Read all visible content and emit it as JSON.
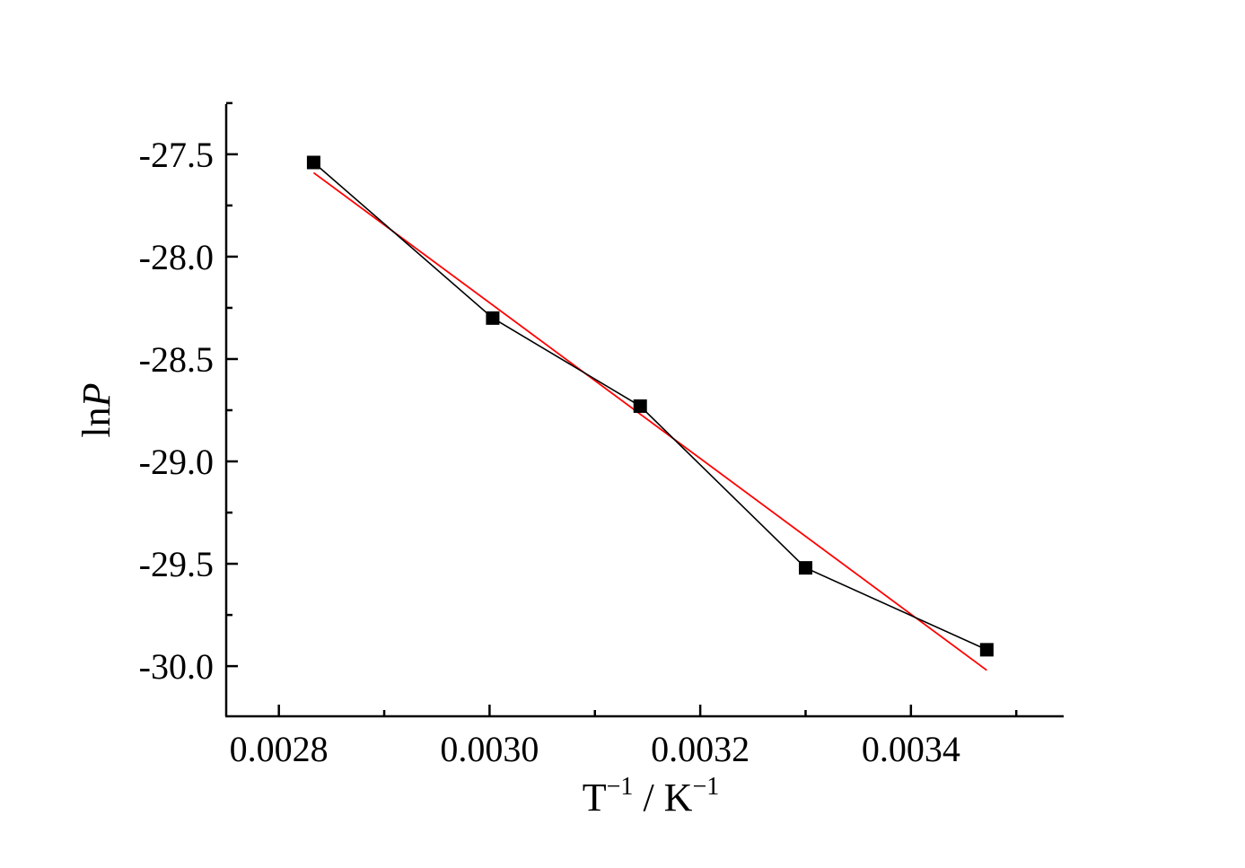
{
  "chart_data": {
    "type": "scatter",
    "xlabel": {
      "base": "T",
      "base_sup": "−1",
      "sep": " / K",
      "unit_sup": "−1"
    },
    "ylabel": {
      "prefix": "ln",
      "italic": "P"
    },
    "xlim": [
      0.00275,
      0.003545
    ],
    "ylim": [
      -30.245,
      -27.255
    ],
    "x_ticks": [
      0.0028,
      0.003,
      0.0032,
      0.0034
    ],
    "x_tick_labels": [
      "0.0028",
      "0.0030",
      "0.0032",
      "0.0034"
    ],
    "x_minor_ticks": [
      0.0029,
      0.0031,
      0.0033,
      0.0035
    ],
    "y_ticks": [
      -27.5,
      -28.0,
      -28.5,
      -29.0,
      -29.5,
      -30.0
    ],
    "y_tick_labels": [
      "-27.5",
      "-28.0",
      "-28.5",
      "-29.0",
      "-29.5",
      "-30.0"
    ],
    "y_minor_ticks": [
      -27.25,
      -27.75,
      -28.25,
      -28.75,
      -29.25,
      -29.75
    ],
    "grid": false,
    "series": [
      {
        "style": "line+square-markers",
        "color": "#000000",
        "x": [
          0.002833,
          0.003003,
          0.003143,
          0.0033,
          0.003472
        ],
        "y": [
          -27.54,
          -28.3,
          -28.73,
          -29.52,
          -29.92
        ]
      },
      {
        "style": "line",
        "color": "#ff0000",
        "x": [
          0.002833,
          0.003472
        ],
        "y": [
          -27.59,
          -30.02
        ]
      }
    ]
  }
}
